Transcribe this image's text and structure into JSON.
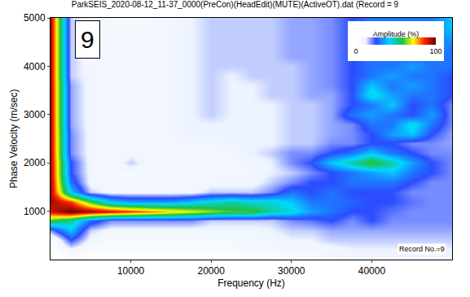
{
  "chart_data": {
    "type": "heatmap",
    "title": "ParkSEIS_2020-08-12_11-37_0000(PreCon)(HeadEdit)(MUTE)(ActiveOT).dat (Record = 9",
    "x_label": "Frequency (Hz)",
    "y_label": "Phase Velocity (m/sec)",
    "x": [
      0,
      2500,
      5000,
      7500,
      10000,
      12500,
      15000,
      17500,
      20000,
      22500,
      25000,
      27500,
      30000,
      32500,
      35000,
      37500,
      40000,
      42500,
      45000,
      47500,
      50000
    ],
    "y": [
      0,
      200,
      400,
      600,
      800,
      1000,
      1200,
      1400,
      1600,
      1800,
      2000,
      2200,
      2400,
      2600,
      2800,
      3000,
      3200,
      3400,
      3600,
      3800,
      4000,
      4200,
      4400,
      4600,
      4800,
      5000
    ],
    "z": [
      [
        0,
        0,
        0,
        0,
        0,
        0,
        0,
        0,
        0,
        0,
        0,
        0,
        5,
        5,
        8,
        8,
        10,
        10,
        10,
        10,
        10
      ],
      [
        0,
        10,
        5,
        5,
        5,
        5,
        5,
        5,
        5,
        5,
        8,
        8,
        10,
        10,
        10,
        12,
        12,
        12,
        12,
        12,
        12
      ],
      [
        0,
        25,
        10,
        8,
        8,
        8,
        8,
        8,
        8,
        8,
        10,
        10,
        12,
        12,
        15,
        15,
        15,
        15,
        15,
        15,
        15
      ],
      [
        20,
        40,
        15,
        10,
        10,
        10,
        10,
        10,
        10,
        10,
        10,
        12,
        15,
        15,
        18,
        18,
        18,
        18,
        18,
        18,
        18
      ],
      [
        60,
        50,
        30,
        20,
        20,
        20,
        20,
        20,
        15,
        15,
        15,
        15,
        20,
        22,
        25,
        20,
        25,
        20,
        20,
        20,
        20
      ],
      [
        90,
        100,
        95,
        90,
        85,
        80,
        75,
        70,
        65,
        60,
        60,
        50,
        45,
        35,
        30,
        25,
        25,
        22,
        20,
        20,
        20
      ],
      [
        95,
        85,
        60,
        40,
        35,
        35,
        35,
        40,
        45,
        50,
        45,
        45,
        40,
        30,
        30,
        28,
        25,
        25,
        22,
        20,
        20
      ],
      [
        95,
        40,
        15,
        10,
        10,
        10,
        10,
        10,
        15,
        15,
        15,
        20,
        30,
        25,
        30,
        25,
        25,
        25,
        20,
        20,
        20
      ],
      [
        95,
        30,
        10,
        8,
        8,
        8,
        8,
        8,
        10,
        10,
        10,
        15,
        20,
        25,
        25,
        30,
        30,
        30,
        25,
        20,
        20
      ],
      [
        95,
        25,
        10,
        8,
        8,
        8,
        8,
        8,
        8,
        10,
        10,
        12,
        15,
        20,
        25,
        30,
        35,
        40,
        30,
        25,
        20
      ],
      [
        95,
        25,
        10,
        8,
        15,
        8,
        8,
        8,
        8,
        10,
        10,
        12,
        20,
        25,
        40,
        50,
        60,
        50,
        35,
        25,
        20
      ],
      [
        95,
        20,
        10,
        8,
        10,
        8,
        8,
        8,
        8,
        10,
        12,
        15,
        20,
        20,
        25,
        30,
        40,
        30,
        25,
        20,
        20
      ],
      [
        95,
        20,
        10,
        8,
        8,
        8,
        10,
        10,
        10,
        12,
        12,
        12,
        15,
        15,
        20,
        20,
        25,
        25,
        20,
        20,
        18
      ],
      [
        95,
        20,
        10,
        8,
        8,
        8,
        10,
        12,
        12,
        12,
        12,
        12,
        15,
        15,
        18,
        20,
        25,
        35,
        40,
        25,
        18
      ],
      [
        95,
        18,
        10,
        8,
        8,
        8,
        10,
        12,
        12,
        12,
        12,
        12,
        15,
        15,
        18,
        20,
        30,
        30,
        45,
        30,
        20
      ],
      [
        95,
        18,
        10,
        8,
        8,
        8,
        10,
        12,
        15,
        12,
        12,
        12,
        15,
        15,
        18,
        30,
        35,
        30,
        25,
        35,
        20
      ],
      [
        95,
        18,
        10,
        8,
        8,
        8,
        10,
        12,
        15,
        12,
        12,
        12,
        15,
        15,
        18,
        25,
        30,
        40,
        25,
        30,
        20
      ],
      [
        95,
        18,
        10,
        8,
        8,
        8,
        10,
        12,
        15,
        12,
        12,
        15,
        15,
        18,
        18,
        25,
        45,
        35,
        30,
        30,
        25
      ],
      [
        95,
        18,
        10,
        8,
        8,
        8,
        10,
        12,
        15,
        12,
        12,
        15,
        15,
        18,
        20,
        25,
        40,
        30,
        35,
        30,
        25
      ],
      [
        95,
        15,
        10,
        8,
        8,
        8,
        10,
        12,
        15,
        12,
        15,
        15,
        15,
        18,
        20,
        25,
        30,
        35,
        30,
        30,
        25
      ],
      [
        95,
        15,
        10,
        8,
        8,
        8,
        10,
        12,
        15,
        15,
        15,
        15,
        15,
        18,
        20,
        25,
        30,
        30,
        35,
        30,
        30
      ],
      [
        95,
        15,
        10,
        8,
        8,
        8,
        10,
        12,
        15,
        15,
        15,
        15,
        18,
        18,
        20,
        25,
        30,
        30,
        30,
        30,
        30
      ],
      [
        95,
        15,
        10,
        8,
        8,
        8,
        10,
        12,
        15,
        15,
        15,
        15,
        18,
        18,
        20,
        25,
        30,
        30,
        30,
        35,
        30
      ],
      [
        95,
        15,
        10,
        8,
        8,
        8,
        10,
        12,
        15,
        15,
        15,
        15,
        18,
        18,
        20,
        25,
        30,
        30,
        30,
        30,
        35
      ],
      [
        95,
        15,
        10,
        8,
        8,
        8,
        10,
        12,
        15,
        15,
        15,
        15,
        18,
        18,
        20,
        25,
        30,
        30,
        30,
        30,
        40
      ],
      [
        95,
        15,
        10,
        8,
        8,
        8,
        10,
        12,
        15,
        15,
        15,
        15,
        18,
        18,
        20,
        25,
        30,
        30,
        30,
        30,
        40
      ]
    ],
    "xlim": [
      0,
      50000
    ],
    "ylim": [
      0,
      5000
    ],
    "xticks": [
      10000,
      20000,
      30000,
      40000
    ],
    "yticks": [
      1000,
      2000,
      3000,
      4000,
      5000
    ],
    "grid": true,
    "colorbar_title": "Amplitude (%)",
    "colorbar_range": [
      0,
      100
    ],
    "colorbar_ticks": [
      0,
      100
    ],
    "annotations": [
      "9",
      "Record No.=9"
    ]
  }
}
